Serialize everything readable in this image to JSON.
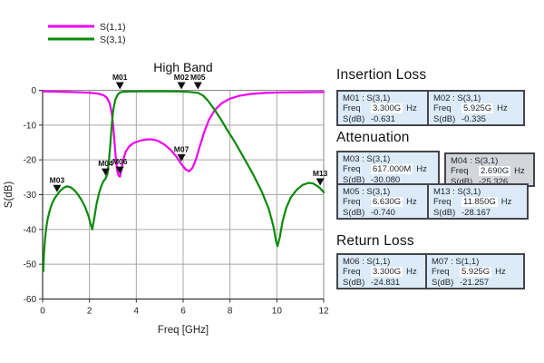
{
  "chart_data": {
    "type": "line",
    "title": "High Band",
    "xlabel": "Freq [GHz]",
    "ylabel": "S(dB)",
    "xlim": [
      0,
      12
    ],
    "ylim": [
      -60,
      0
    ],
    "x_ticks": [
      0,
      2,
      4,
      6,
      8,
      10,
      12
    ],
    "y_ticks": [
      0,
      -10,
      -20,
      -30,
      -40,
      -50,
      -60
    ],
    "grid": true,
    "legend_position": "top-left",
    "series": [
      {
        "name": "S(1,1)",
        "color": "#ee00ee",
        "points": [
          [
            0,
            -0.35
          ],
          [
            0.6,
            -0.4
          ],
          [
            1.2,
            -0.5
          ],
          [
            1.7,
            -0.6
          ],
          [
            2.1,
            -0.75
          ],
          [
            2.4,
            -1.0
          ],
          [
            2.6,
            -1.4
          ],
          [
            2.75,
            -2.2
          ],
          [
            2.87,
            -3.8
          ],
          [
            2.95,
            -6.5
          ],
          [
            3.01,
            -10
          ],
          [
            3.07,
            -15
          ],
          [
            3.13,
            -20
          ],
          [
            3.19,
            -23.3
          ],
          [
            3.25,
            -24.6
          ],
          [
            3.3,
            -24.83
          ],
          [
            3.36,
            -23
          ],
          [
            3.44,
            -20
          ],
          [
            3.55,
            -17.6
          ],
          [
            3.7,
            -16.1
          ],
          [
            3.9,
            -15.1
          ],
          [
            4.15,
            -14.5
          ],
          [
            4.45,
            -14.1
          ],
          [
            4.7,
            -14.1
          ],
          [
            4.95,
            -14.6
          ],
          [
            5.2,
            -15.6
          ],
          [
            5.45,
            -17
          ],
          [
            5.7,
            -19
          ],
          [
            5.925,
            -21.26
          ],
          [
            6.1,
            -22.7
          ],
          [
            6.25,
            -23.3
          ],
          [
            6.4,
            -22.3
          ],
          [
            6.55,
            -19.8
          ],
          [
            6.7,
            -16.3
          ],
          [
            6.9,
            -12
          ],
          [
            7.1,
            -8.5
          ],
          [
            7.35,
            -5.7
          ],
          [
            7.65,
            -3.7
          ],
          [
            8.0,
            -2.4
          ],
          [
            8.4,
            -1.6
          ],
          [
            8.9,
            -1.05
          ],
          [
            9.5,
            -0.75
          ],
          [
            10.2,
            -0.6
          ],
          [
            11,
            -0.55
          ],
          [
            12,
            -0.5
          ]
        ]
      },
      {
        "name": "S(3,1)",
        "color": "#0b8a0b",
        "points": [
          [
            0.03,
            -52
          ],
          [
            0.06,
            -47
          ],
          [
            0.1,
            -43
          ],
          [
            0.15,
            -39.8
          ],
          [
            0.22,
            -36.8
          ],
          [
            0.3,
            -34.6
          ],
          [
            0.4,
            -32.6
          ],
          [
            0.5,
            -31.2
          ],
          [
            0.617,
            -30.08
          ],
          [
            0.75,
            -28.9
          ],
          [
            0.9,
            -28.0
          ],
          [
            1.05,
            -27.6
          ],
          [
            1.2,
            -27.9
          ],
          [
            1.35,
            -28.7
          ],
          [
            1.5,
            -29.9
          ],
          [
            1.65,
            -31.4
          ],
          [
            1.8,
            -33.3
          ],
          [
            1.95,
            -36
          ],
          [
            2.05,
            -38.5
          ],
          [
            2.12,
            -40
          ],
          [
            2.2,
            -37
          ],
          [
            2.3,
            -32.8
          ],
          [
            2.4,
            -29.8
          ],
          [
            2.5,
            -27.6
          ],
          [
            2.6,
            -26.1
          ],
          [
            2.69,
            -25.33
          ],
          [
            2.76,
            -24.2
          ],
          [
            2.83,
            -20.5
          ],
          [
            2.89,
            -15.5
          ],
          [
            2.95,
            -10
          ],
          [
            3.02,
            -5.5
          ],
          [
            3.1,
            -2.8
          ],
          [
            3.2,
            -1.3
          ],
          [
            3.3,
            -0.63
          ],
          [
            3.45,
            -0.42
          ],
          [
            3.7,
            -0.35
          ],
          [
            4.2,
            -0.32
          ],
          [
            4.8,
            -0.32
          ],
          [
            5.4,
            -0.32
          ],
          [
            5.925,
            -0.335
          ],
          [
            6.2,
            -0.45
          ],
          [
            6.45,
            -0.6
          ],
          [
            6.63,
            -0.74
          ],
          [
            6.85,
            -1.5
          ],
          [
            7.05,
            -2.9
          ],
          [
            7.3,
            -5.2
          ],
          [
            7.6,
            -8.2
          ],
          [
            7.9,
            -11.6
          ],
          [
            8.2,
            -14.8
          ],
          [
            8.6,
            -19.5
          ],
          [
            9.0,
            -24.3
          ],
          [
            9.35,
            -29
          ],
          [
            9.65,
            -34
          ],
          [
            9.85,
            -39
          ],
          [
            9.97,
            -43.5
          ],
          [
            10.03,
            -44.8
          ],
          [
            10.12,
            -42.5
          ],
          [
            10.25,
            -37.5
          ],
          [
            10.4,
            -33.8
          ],
          [
            10.6,
            -30.8
          ],
          [
            10.85,
            -28.6
          ],
          [
            11.1,
            -27.2
          ],
          [
            11.35,
            -26.6
          ],
          [
            11.55,
            -26.8
          ],
          [
            11.72,
            -27.5
          ],
          [
            11.85,
            -28.17
          ],
          [
            12,
            -29.3
          ]
        ]
      }
    ],
    "markers": [
      {
        "id": "M01",
        "trace": "S(3,1)",
        "freq_ghz": 3.3,
        "db": -0.631,
        "label_at_top": true
      },
      {
        "id": "M02",
        "trace": "S(3,1)",
        "freq_ghz": 5.925,
        "db": -0.335,
        "label_at_top": true
      },
      {
        "id": "M05",
        "trace": "S(3,1)",
        "freq_ghz": 6.63,
        "db": -0.74,
        "label_at_top": true
      },
      {
        "id": "M03",
        "trace": "S(3,1)",
        "freq_ghz": 0.617,
        "db": -30.08,
        "label_at_top": false
      },
      {
        "id": "M04",
        "trace": "S(3,1)",
        "freq_ghz": 2.69,
        "db": -25.326,
        "label_at_top": false
      },
      {
        "id": "M06",
        "trace": "S(1,1)",
        "freq_ghz": 3.3,
        "db": -24.831,
        "label_at_top": false
      },
      {
        "id": "M07",
        "trace": "S(1,1)",
        "freq_ghz": 5.925,
        "db": -21.257,
        "label_at_top": false
      },
      {
        "id": "M13",
        "trace": "S(3,1)",
        "freq_ghz": 11.85,
        "db": -28.167,
        "label_at_top": false
      }
    ]
  },
  "panel": {
    "labels": {
      "freq": "Freq",
      "sdb": "S(dB)",
      "unit": "Hz",
      "sep": ":"
    },
    "sections": [
      {
        "title": "Insertion Loss",
        "rows": [
          [
            {
              "id": "M01",
              "trace": "S(3,1)",
              "freq": "3.300G",
              "sdb": "-0.631"
            },
            {
              "id": "M02",
              "trace": "S(3,1)",
              "freq": "5.925G",
              "sdb": "-0.335"
            }
          ]
        ]
      },
      {
        "title": "Attenuation",
        "rows": [
          [
            {
              "id": "M03",
              "trace": "S(3,1)",
              "freq": "617.000M",
              "sdb": "-30.080"
            },
            {
              "id": "M04",
              "trace": "S(3,1)",
              "freq": "2.690G",
              "sdb": "-25.326",
              "selected": true
            }
          ],
          [
            {
              "id": "M05",
              "trace": "S(3,1)",
              "freq": "6.630G",
              "sdb": "-0.740"
            },
            {
              "id": "M13",
              "trace": "S(3,1)",
              "freq": "11.850G",
              "sdb": "-28.167"
            }
          ]
        ]
      },
      {
        "title": "Return Loss",
        "rows": [
          [
            {
              "id": "M06",
              "trace": "S(1,1)",
              "freq": "3.300G",
              "sdb": "-24.831"
            },
            {
              "id": "M07",
              "trace": "S(1,1)",
              "freq": "5.925G",
              "sdb": "-21.257"
            }
          ]
        ]
      }
    ]
  },
  "colors": {
    "s11": "#ee00ee",
    "s31": "#0b8a0b",
    "cell_bg": "#dcebf7",
    "cell_selected_bg": "#d3d6da",
    "cell_border": "#45454d",
    "grid": "#a8a8a8",
    "axis": "#333333",
    "marker": "#111111"
  }
}
